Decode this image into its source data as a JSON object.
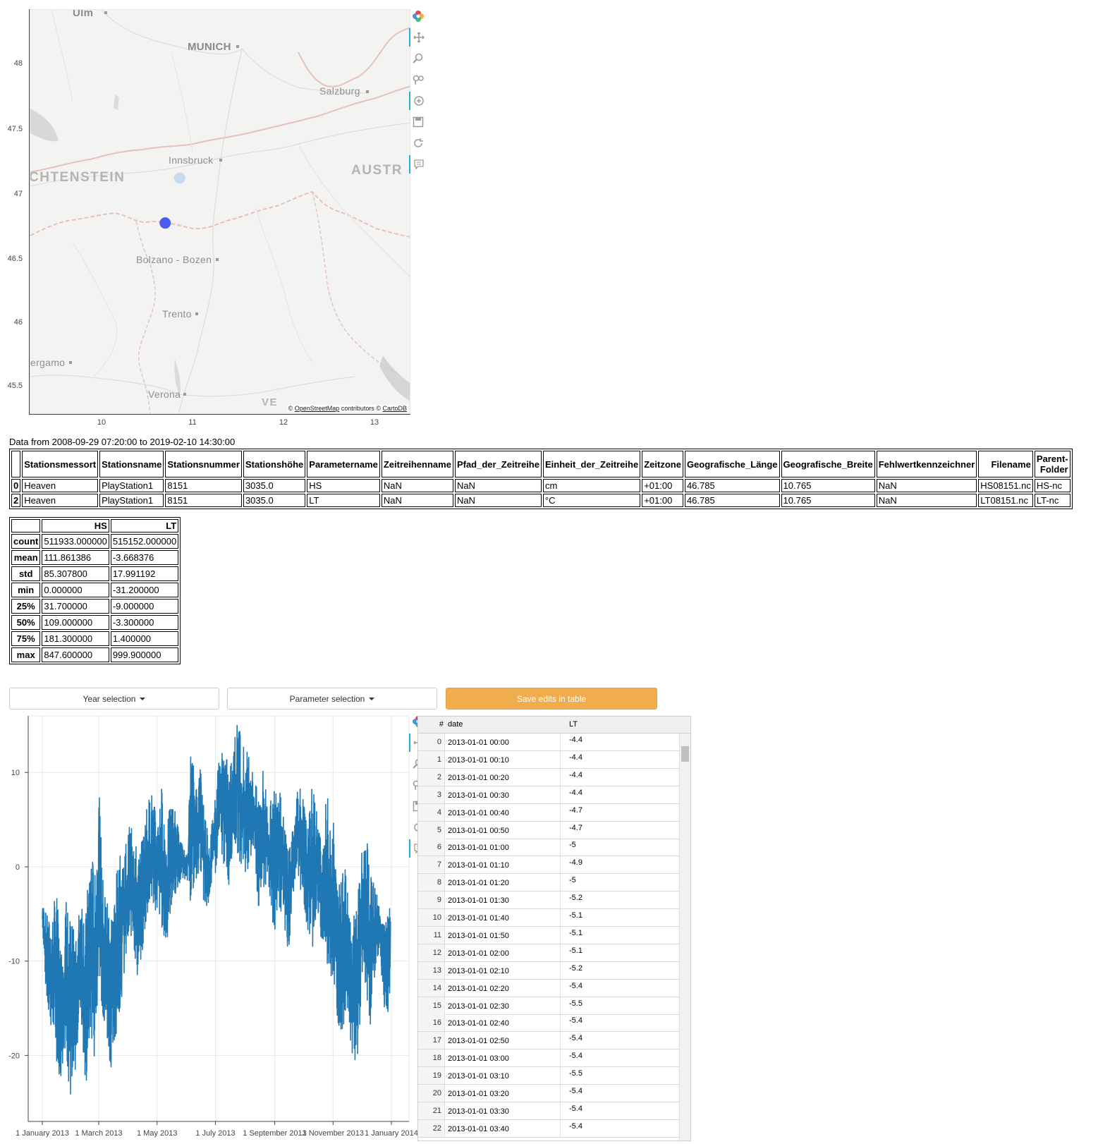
{
  "map": {
    "cities": [
      {
        "name": "Ulm"
      },
      {
        "name": "MUNICH"
      },
      {
        "name": "Salzburg"
      },
      {
        "name": "Innsbruck"
      },
      {
        "name": "Bolzano - Bozen"
      },
      {
        "name": "Trento"
      },
      {
        "name": "ergamo"
      },
      {
        "name": "Verona"
      }
    ],
    "countries": [
      {
        "name": "CHTENSTEIN"
      },
      {
        "name": "AUSTR"
      },
      {
        "name": "VE"
      }
    ],
    "attribution": {
      "prefix": "©",
      "osm": "OpenStreetMap",
      "mid": " contributors ©",
      "carto": "CartoDB"
    },
    "y_ticks": [
      "48",
      "47.5",
      "47",
      "46.5",
      "46",
      "45.5"
    ],
    "x_ticks": [
      "10",
      "11",
      "12",
      "13"
    ],
    "points": [
      {
        "lon": 10.93,
        "lat": 47.13,
        "color": "#c6dbef"
      },
      {
        "lon": 10.765,
        "lat": 46.785,
        "color": "#4a5cf2"
      }
    ],
    "toolbar": [
      "bokeh-logo-icon",
      "pan-icon",
      "box-zoom-icon",
      "wheel-zoom-icon",
      "tap-icon",
      "save-icon",
      "reset-icon",
      "hover-icon"
    ]
  },
  "meta": {
    "date_range": "Data from 2008-09-29 07:20:00 to 2019-02-10 14:30:00",
    "columns": [
      "",
      "Stationsmessort",
      "Stationsname",
      "Stationsnummer",
      "Stationshöhe",
      "Parametername",
      "Zeitreihenname",
      "Pfad_der_Zeitreihe",
      "Einheit_der_Zeitreihe",
      "Zeitzone",
      "Geografische_Länge",
      "Geografische_Breite",
      "Fehlwertkennzeichner",
      "Filename",
      "Parent-Folder"
    ],
    "rows": [
      [
        "0",
        "Heaven",
        "PlayStation1",
        "8151",
        "3035.0",
        "HS",
        "NaN",
        "NaN",
        "cm",
        "+01:00",
        "46.785",
        "10.765",
        "NaN",
        "HS08151.nc",
        "HS-nc"
      ],
      [
        "2",
        "Heaven",
        "PlayStation1",
        "8151",
        "3035.0",
        "LT",
        "NaN",
        "NaN",
        "°C",
        "+01:00",
        "46.785",
        "10.765",
        "NaN",
        "LT08151.nc",
        "LT-nc"
      ]
    ]
  },
  "stats": {
    "columns": [
      "",
      "HS",
      "LT"
    ],
    "rows": [
      [
        "count",
        "511933.000000",
        "515152.000000"
      ],
      [
        "mean",
        "111.861386",
        "-3.668376"
      ],
      [
        "std",
        "85.307800",
        "17.991192"
      ],
      [
        "min",
        "0.000000",
        "-31.200000"
      ],
      [
        "25%",
        "31.700000",
        "-9.000000"
      ],
      [
        "50%",
        "109.000000",
        "-3.300000"
      ],
      [
        "75%",
        "181.300000",
        "1.400000"
      ],
      [
        "max",
        "847.600000",
        "999.900000"
      ]
    ]
  },
  "controls": {
    "year_label": "Year selection",
    "param_label": "Parameter selection",
    "save_label": "Save edits in table",
    "save_color": "#f0ad4e"
  },
  "chart_data": {
    "type": "line",
    "title": "",
    "xlabel": "",
    "ylabel": "",
    "x_ticks": [
      "1 January 2013",
      "1 March 2013",
      "1 May 2013",
      "1 July 2013",
      "1 September 2013",
      "1 November 2013",
      "1 January 2014"
    ],
    "y_ticks": [
      "10",
      "0",
      "-10",
      "-20"
    ],
    "ylim": [
      -27,
      16
    ],
    "color": "#1f77b4",
    "series": [
      {
        "x": [
          "2013-01-01",
          "2013-01-05",
          "2013-01-10",
          "2013-01-15",
          "2013-01-20",
          "2013-01-25",
          "2013-02-01",
          "2013-02-05",
          "2013-02-10",
          "2013-02-15",
          "2013-02-20",
          "2013-02-25",
          "2013-03-01",
          "2013-03-05",
          "2013-03-10",
          "2013-03-15",
          "2013-03-20",
          "2013-03-25",
          "2013-04-01",
          "2013-04-05",
          "2013-04-10",
          "2013-04-15",
          "2013-04-20",
          "2013-04-25",
          "2013-05-01",
          "2013-05-05",
          "2013-05-10",
          "2013-05-15",
          "2013-05-20",
          "2013-05-25",
          "2013-06-01",
          "2013-06-05",
          "2013-06-10",
          "2013-06-15",
          "2013-06-20",
          "2013-06-25",
          "2013-07-01",
          "2013-07-05",
          "2013-07-10",
          "2013-07-15",
          "2013-07-20",
          "2013-07-25",
          "2013-08-01",
          "2013-08-05",
          "2013-08-10",
          "2013-08-15",
          "2013-08-20",
          "2013-08-25",
          "2013-09-01",
          "2013-09-05",
          "2013-09-10",
          "2013-09-15",
          "2013-09-20",
          "2013-09-25",
          "2013-10-01",
          "2013-10-05",
          "2013-10-10",
          "2013-10-15",
          "2013-10-20",
          "2013-10-25",
          "2013-11-01",
          "2013-11-05",
          "2013-11-10",
          "2013-11-15",
          "2013-11-20",
          "2013-11-25",
          "2013-12-01",
          "2013-12-05",
          "2013-12-10",
          "2013-12-15",
          "2013-12-20",
          "2013-12-25",
          "2013-12-31"
        ],
        "min": [
          -6,
          -14,
          -17,
          -20,
          -23,
          -19,
          -27,
          -21,
          -15,
          -25,
          -18,
          -21,
          -10,
          -16,
          -19,
          -22,
          -17,
          -14,
          -9,
          -7,
          -12,
          -10,
          -6,
          -4,
          -5,
          -6,
          -9,
          -5,
          -3,
          -2,
          -1,
          -4,
          -2,
          0,
          -6,
          -3,
          -1,
          2,
          0,
          -2,
          3,
          1,
          -1,
          0,
          2,
          -5,
          -3,
          -2,
          -8,
          -4,
          -6,
          -10,
          -3,
          -1,
          -4,
          -7,
          -9,
          -5,
          -8,
          -11,
          -12,
          -16,
          -18,
          -15,
          -19,
          -23,
          -14,
          -13,
          -17,
          -11,
          -9,
          -16,
          -15
        ],
        "max": [
          -4,
          -5,
          -6,
          -2,
          -9,
          -3,
          -6,
          -8,
          -2,
          -5,
          3,
          -1,
          8,
          -1,
          -3,
          -4,
          0,
          2,
          4,
          6,
          1,
          3,
          7,
          8,
          5,
          9,
          4,
          7,
          6,
          3,
          1,
          13,
          9,
          11,
          6,
          3,
          9,
          12,
          13,
          10,
          14,
          16,
          12,
          13,
          9,
          8,
          11,
          6,
          9,
          11,
          5,
          3,
          4,
          10,
          7,
          4,
          9,
          6,
          2,
          8,
          5,
          -2,
          3,
          -1,
          -6,
          -3,
          2,
          4,
          -1,
          -2,
          -5,
          -6,
          -4
        ]
      }
    ]
  },
  "grid": {
    "columns": [
      "#",
      "date",
      "LT"
    ],
    "rows": [
      [
        "0",
        "2013-01-01 00:00",
        "-4.4"
      ],
      [
        "1",
        "2013-01-01 00:10",
        "-4.4"
      ],
      [
        "2",
        "2013-01-01 00:20",
        "-4.4"
      ],
      [
        "3",
        "2013-01-01 00:30",
        "-4.4"
      ],
      [
        "4",
        "2013-01-01 00:40",
        "-4.7"
      ],
      [
        "5",
        "2013-01-01 00:50",
        "-4.7"
      ],
      [
        "6",
        "2013-01-01 01:00",
        "-5"
      ],
      [
        "7",
        "2013-01-01 01:10",
        "-4.9"
      ],
      [
        "8",
        "2013-01-01 01:20",
        "-5"
      ],
      [
        "9",
        "2013-01-01 01:30",
        "-5.2"
      ],
      [
        "10",
        "2013-01-01 01:40",
        "-5.1"
      ],
      [
        "11",
        "2013-01-01 01:50",
        "-5.1"
      ],
      [
        "12",
        "2013-01-01 02:00",
        "-5.1"
      ],
      [
        "13",
        "2013-01-01 02:10",
        "-5.2"
      ],
      [
        "14",
        "2013-01-01 02:20",
        "-5.4"
      ],
      [
        "15",
        "2013-01-01 02:30",
        "-5.5"
      ],
      [
        "16",
        "2013-01-01 02:40",
        "-5.4"
      ],
      [
        "17",
        "2013-01-01 02:50",
        "-5.4"
      ],
      [
        "18",
        "2013-01-01 03:00",
        "-5.4"
      ],
      [
        "19",
        "2013-01-01 03:10",
        "-5.5"
      ],
      [
        "20",
        "2013-01-01 03:20",
        "-5.4"
      ],
      [
        "21",
        "2013-01-01 03:30",
        "-5.4"
      ],
      [
        "22",
        "2013-01-01 03:40",
        "-5.4"
      ]
    ]
  }
}
